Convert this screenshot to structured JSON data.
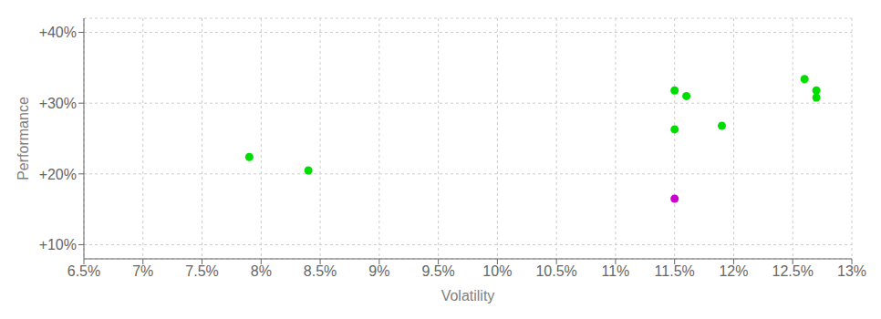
{
  "chart_data": {
    "type": "scatter",
    "xlabel": "Volatility",
    "ylabel": "Performance",
    "xlim": [
      0.065,
      0.13
    ],
    "ylim": [
      0.08,
      0.42
    ],
    "xticks": [
      {
        "value": 0.065,
        "label": "6.5%"
      },
      {
        "value": 0.07,
        "label": "7%"
      },
      {
        "value": 0.075,
        "label": "7.5%"
      },
      {
        "value": 0.08,
        "label": "8%"
      },
      {
        "value": 0.085,
        "label": "8.5%"
      },
      {
        "value": 0.09,
        "label": "9%"
      },
      {
        "value": 0.095,
        "label": "9.5%"
      },
      {
        "value": 0.1,
        "label": "10%"
      },
      {
        "value": 0.105,
        "label": "10.5%"
      },
      {
        "value": 0.11,
        "label": "11%"
      },
      {
        "value": 0.115,
        "label": "11.5%"
      },
      {
        "value": 0.12,
        "label": "12%"
      },
      {
        "value": 0.125,
        "label": "12.5%"
      },
      {
        "value": 0.13,
        "label": "13%"
      }
    ],
    "yticks": [
      {
        "value": 0.1,
        "label": "+10%"
      },
      {
        "value": 0.2,
        "label": "+20%"
      },
      {
        "value": 0.3,
        "label": "+30%"
      },
      {
        "value": 0.4,
        "label": "+40%"
      }
    ],
    "grid": true,
    "series": [
      {
        "color": "#00dd00",
        "x": [
          0.079,
          0.084,
          0.115,
          0.119,
          0.115,
          0.116,
          0.126,
          0.127,
          0.127
        ],
        "values": [
          0.224,
          0.205,
          0.263,
          0.268,
          0.318,
          0.31,
          0.334,
          0.318,
          0.308
        ]
      },
      {
        "color": "#cc00cc",
        "x": [
          0.115
        ],
        "values": [
          0.165
        ]
      }
    ]
  }
}
